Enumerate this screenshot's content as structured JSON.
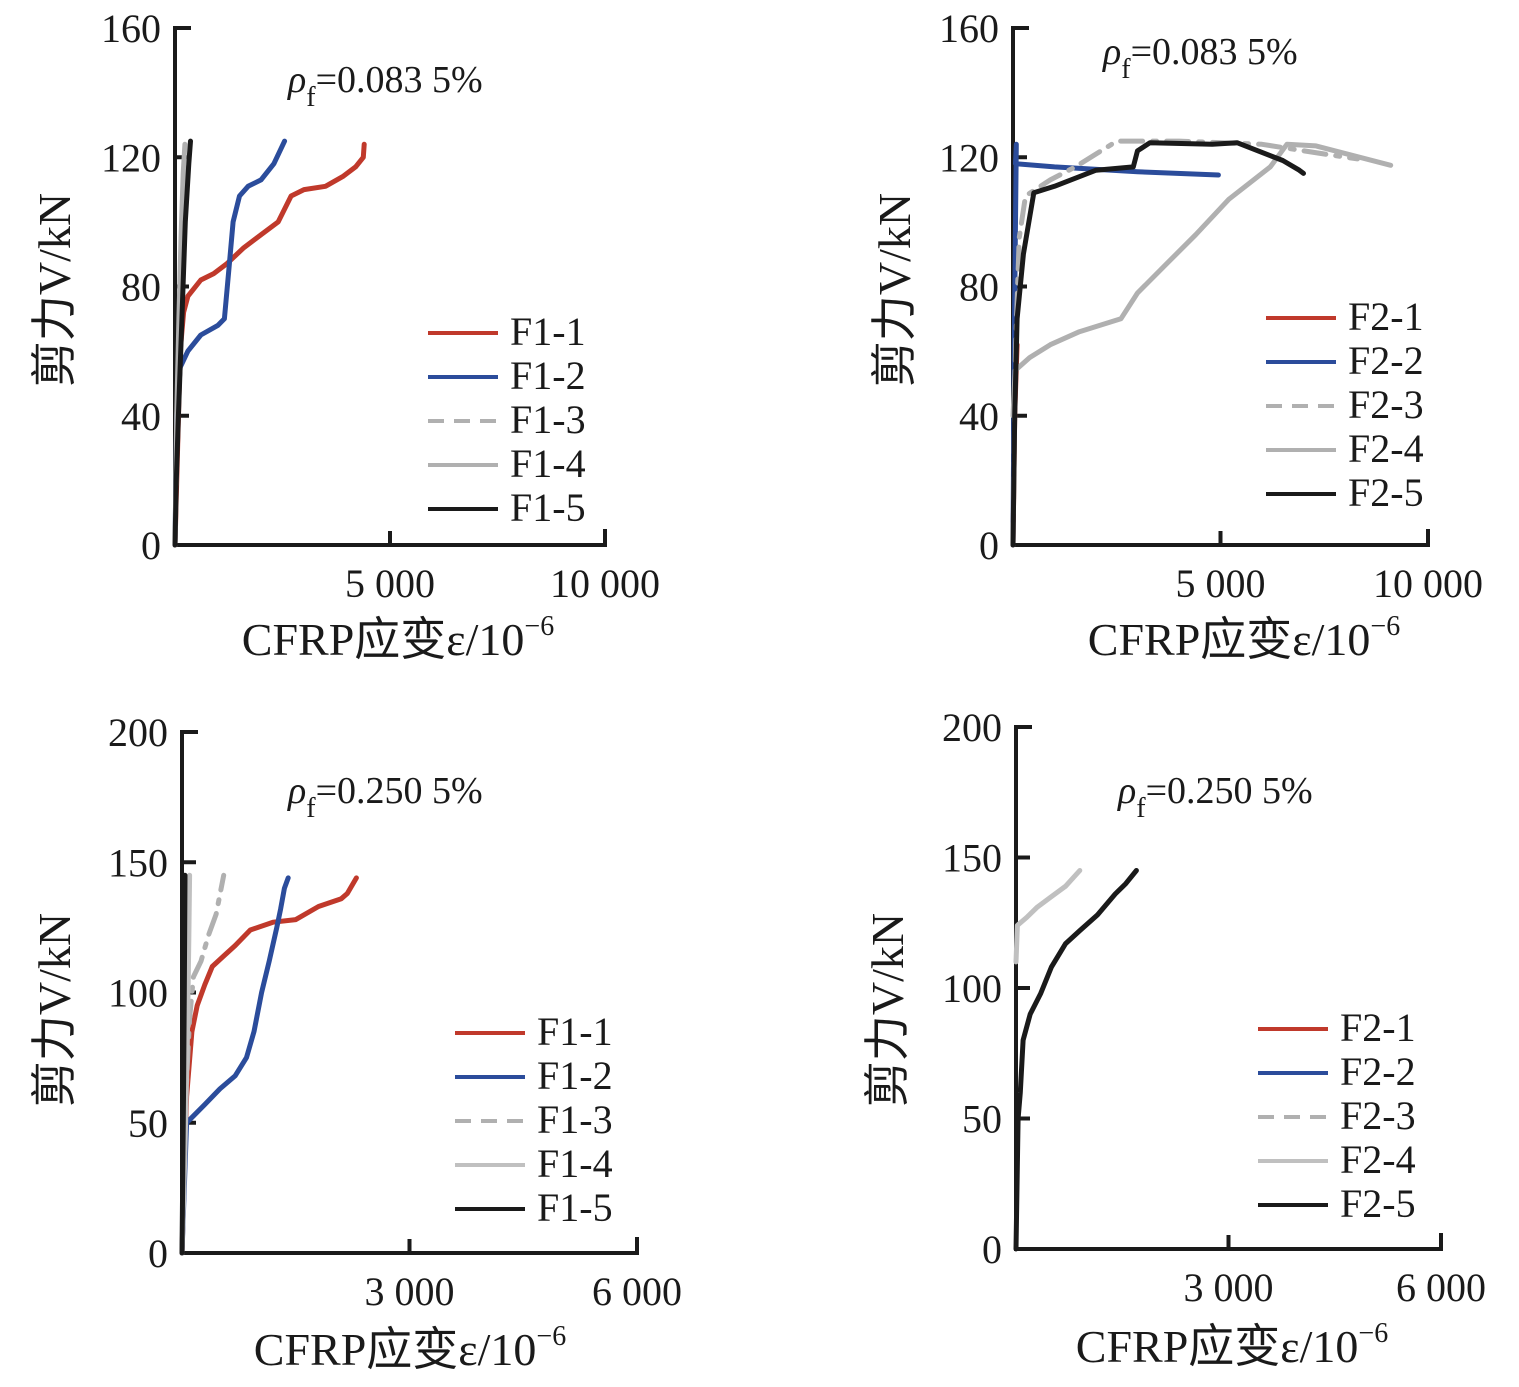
{
  "chart_data": [
    {
      "type": "line",
      "panel": "top-left",
      "annotation": {
        "symbol": "ρ",
        "subscript": "f",
        "value": "=0.083 5%"
      },
      "xlabel": "CFRP应变ε/10",
      "xlabel_exp": "−6",
      "ylabel": "剪力V/kN",
      "xlim": [
        0,
        10000
      ],
      "ylim": [
        0,
        160
      ],
      "xticks": [
        5000,
        10000
      ],
      "xtick_labels": [
        "5 000",
        "10 000"
      ],
      "yticks": [
        0,
        40,
        80,
        120,
        160
      ],
      "ytick_labels": [
        "0",
        "40",
        "80",
        "120",
        "160"
      ],
      "grid": false,
      "legend_position": "bottom-right",
      "series": [
        {
          "name": "F1-1",
          "color": "#c0392b",
          "dash": "solid",
          "points": [
            [
              0,
              0
            ],
            [
              60,
              30
            ],
            [
              120,
              60
            ],
            [
              200,
              72
            ],
            [
              300,
              77
            ],
            [
              600,
              82
            ],
            [
              900,
              84
            ],
            [
              1200,
              87
            ],
            [
              1600,
              92
            ],
            [
              2000,
              96
            ],
            [
              2400,
              100
            ],
            [
              2700,
              108
            ],
            [
              3000,
              110
            ],
            [
              3500,
              111
            ],
            [
              3900,
              114
            ],
            [
              4200,
              117
            ],
            [
              4380,
              120
            ],
            [
              4400,
              124
            ]
          ]
        },
        {
          "name": "F1-2",
          "color": "#2b4c9b",
          "dash": "solid",
          "points": [
            [
              0,
              0
            ],
            [
              40,
              40
            ],
            [
              120,
              55
            ],
            [
              300,
              60
            ],
            [
              600,
              65
            ],
            [
              1000,
              68
            ],
            [
              1150,
              70
            ],
            [
              1250,
              85
            ],
            [
              1350,
              100
            ],
            [
              1500,
              108
            ],
            [
              1700,
              111
            ],
            [
              2000,
              113
            ],
            [
              2300,
              118
            ],
            [
              2550,
              125
            ]
          ]
        },
        {
          "name": "F1-3",
          "color": "#b0b0b0",
          "dash": "dashed",
          "points": [
            [
              0,
              0
            ],
            [
              60,
              40
            ],
            [
              100,
              70
            ],
            [
              150,
              90
            ],
            [
              190,
              105
            ],
            [
              220,
              118
            ]
          ]
        },
        {
          "name": "F1-4",
          "color": "#b0b0b0",
          "dash": "solid",
          "points": [
            [
              0,
              0
            ],
            [
              40,
              40
            ],
            [
              90,
              70
            ],
            [
              140,
              95
            ],
            [
              190,
              115
            ],
            [
              230,
              124
            ]
          ]
        },
        {
          "name": "F1-5",
          "color": "#1a1a1a",
          "dash": "solid",
          "points": [
            [
              0,
              0
            ],
            [
              30,
              20
            ],
            [
              80,
              40
            ],
            [
              160,
              70
            ],
            [
              240,
              100
            ],
            [
              320,
              118
            ],
            [
              360,
              125
            ]
          ]
        }
      ]
    },
    {
      "type": "line",
      "panel": "top-right",
      "annotation": {
        "symbol": "ρ",
        "subscript": "f",
        "value": "=0.083 5%"
      },
      "xlabel": "CFRP应变ε/10",
      "xlabel_exp": "−6",
      "ylabel": "剪力V/kN",
      "xlim": [
        0,
        10000
      ],
      "ylim": [
        0,
        160
      ],
      "xticks": [
        5000,
        10000
      ],
      "xtick_labels": [
        "5 000",
        "10 000"
      ],
      "yticks": [
        0,
        40,
        80,
        120,
        160
      ],
      "ytick_labels": [
        "0",
        "40",
        "80",
        "120",
        "160"
      ],
      "grid": false,
      "legend_position": "bottom-right",
      "series": [
        {
          "name": "F2-1",
          "color": "#c0392b",
          "dash": "solid",
          "points": [
            [
              0,
              0
            ],
            [
              40,
              40
            ],
            [
              80,
              55
            ],
            [
              100,
              62
            ]
          ]
        },
        {
          "name": "F2-2",
          "color": "#2b4c9b",
          "dash": "solid",
          "points": [
            [
              0,
              0
            ],
            [
              30,
              60
            ],
            [
              60,
              100
            ],
            [
              80,
              124
            ],
            [
              60,
              118
            ],
            [
              1000,
              117
            ],
            [
              3000,
              115.5
            ],
            [
              4950,
              114.5
            ]
          ]
        },
        {
          "name": "F2-3",
          "color": "#b0b0b0",
          "dash": "dashdot",
          "points": [
            [
              0,
              0
            ],
            [
              60,
              60
            ],
            [
              150,
              95
            ],
            [
              300,
              108
            ],
            [
              900,
              113
            ],
            [
              1500,
              117
            ],
            [
              2000,
              121
            ],
            [
              2500,
              125
            ],
            [
              4000,
              125
            ],
            [
              6000,
              124
            ],
            [
              7500,
              121
            ],
            [
              8300,
              119.5
            ]
          ]
        },
        {
          "name": "F2-4",
          "color": "#b0b0b0",
          "dash": "solid",
          "points": [
            [
              0,
              40
            ],
            [
              50,
              54
            ],
            [
              400,
              58
            ],
            [
              900,
              62
            ],
            [
              1600,
              66
            ],
            [
              2600,
              70
            ],
            [
              3000,
              78
            ],
            [
              3700,
              87
            ],
            [
              4400,
              96
            ],
            [
              5200,
              107
            ],
            [
              6200,
              117
            ],
            [
              6600,
              124
            ],
            [
              7300,
              123.5
            ],
            [
              9100,
              117.5
            ]
          ]
        },
        {
          "name": "F2-5",
          "color": "#1a1a1a",
          "dash": "solid",
          "points": [
            [
              0,
              0
            ],
            [
              40,
              40
            ],
            [
              100,
              70
            ],
            [
              250,
              90
            ],
            [
              500,
              109
            ],
            [
              1000,
              111
            ],
            [
              2000,
              116
            ],
            [
              2900,
              117
            ],
            [
              3000,
              122
            ],
            [
              3300,
              124.5
            ],
            [
              4800,
              124
            ],
            [
              5400,
              124.5
            ],
            [
              6500,
              119
            ],
            [
              6900,
              116
            ],
            [
              7000,
              115
            ]
          ]
        }
      ]
    },
    {
      "type": "line",
      "panel": "bottom-left",
      "annotation": {
        "symbol": "ρ",
        "subscript": "f",
        "value": "=0.250 5%"
      },
      "xlabel": "CFRP应变ε/10",
      "xlabel_exp": "−6",
      "ylabel": "剪力V/kN",
      "xlim": [
        0,
        6000
      ],
      "ylim": [
        0,
        200
      ],
      "xticks": [
        3000,
        6000
      ],
      "xtick_labels": [
        "3 000",
        "6 000"
      ],
      "yticks": [
        0,
        50,
        100,
        150,
        200
      ],
      "ytick_labels": [
        "0",
        "50",
        "100",
        "150",
        "200"
      ],
      "grid": false,
      "legend_position": "bottom-right",
      "series": [
        {
          "name": "F1-1",
          "color": "#c0392b",
          "dash": "solid",
          "points": [
            [
              0,
              0
            ],
            [
              60,
              60
            ],
            [
              130,
              85
            ],
            [
              200,
              95
            ],
            [
              300,
              103
            ],
            [
              400,
              110
            ],
            [
              550,
              114
            ],
            [
              700,
              118
            ],
            [
              900,
              124
            ],
            [
              1200,
              127
            ],
            [
              1500,
              128
            ],
            [
              1800,
              133
            ],
            [
              2100,
              136
            ],
            [
              2180,
              138
            ],
            [
              2300,
              144
            ]
          ]
        },
        {
          "name": "F1-2",
          "color": "#2b4c9b",
          "dash": "solid",
          "points": [
            [
              0,
              0
            ],
            [
              60,
              50
            ],
            [
              300,
              57
            ],
            [
              500,
              63
            ],
            [
              700,
              68
            ],
            [
              850,
              75
            ],
            [
              950,
              85
            ],
            [
              1050,
              100
            ],
            [
              1150,
              112
            ],
            [
              1250,
              125
            ],
            [
              1300,
              132
            ],
            [
              1350,
              140
            ],
            [
              1400,
              144
            ]
          ]
        },
        {
          "name": "F1-3",
          "color": "#b0b0b0",
          "dash": "dashdot",
          "points": [
            [
              0,
              0
            ],
            [
              50,
              60
            ],
            [
              100,
              90
            ],
            [
              150,
              106
            ],
            [
              250,
              112
            ],
            [
              350,
              122
            ],
            [
              450,
              130
            ],
            [
              550,
              145
            ]
          ]
        },
        {
          "name": "F1-4",
          "color": "#c0c0c0",
          "dash": "solid",
          "points": [
            [
              0,
              0
            ],
            [
              40,
              40
            ],
            [
              70,
              80
            ],
            [
              90,
              120
            ],
            [
              100,
              145
            ]
          ]
        },
        {
          "name": "F1-5",
          "color": "#1a1a1a",
          "dash": "solid",
          "points": [
            [
              0,
              0
            ],
            [
              20,
              60
            ],
            [
              30,
              100
            ],
            [
              40,
              145
            ]
          ]
        }
      ]
    },
    {
      "type": "line",
      "panel": "bottom-right",
      "annotation": {
        "symbol": "ρ",
        "subscript": "f",
        "value": "=0.250 5%"
      },
      "xlabel": "CFRP应变ε/10",
      "xlabel_exp": "−6",
      "ylabel": "剪力V/kN",
      "xlim": [
        0,
        6000
      ],
      "ylim": [
        0,
        200
      ],
      "xticks": [
        3000,
        6000
      ],
      "xtick_labels": [
        "3 000",
        "6 000"
      ],
      "yticks": [
        0,
        50,
        100,
        150,
        200
      ],
      "ytick_labels": [
        "0",
        "50",
        "100",
        "150",
        "200"
      ],
      "grid": false,
      "legend_position": "bottom-right",
      "series": [
        {
          "name": "F2-1",
          "color": "#c0392b",
          "dash": "solid",
          "points": []
        },
        {
          "name": "F2-2",
          "color": "#2b4c9b",
          "dash": "solid",
          "points": []
        },
        {
          "name": "F2-3",
          "color": "#b0b0b0",
          "dash": "dashed",
          "points": []
        },
        {
          "name": "F2-4",
          "color": "#c0c0c0",
          "dash": "solid",
          "points": [
            [
              0,
              110
            ],
            [
              20,
              124
            ],
            [
              150,
              127
            ],
            [
              300,
              131
            ],
            [
              500,
              135
            ],
            [
              700,
              139
            ],
            [
              900,
              145
            ]
          ]
        },
        {
          "name": "F2-5",
          "color": "#1a1a1a",
          "dash": "solid",
          "points": [
            [
              0,
              0
            ],
            [
              30,
              50
            ],
            [
              60,
              60
            ],
            [
              100,
              80
            ],
            [
              200,
              90
            ],
            [
              350,
              98
            ],
            [
              500,
              108
            ],
            [
              700,
              117
            ],
            [
              900,
              122
            ],
            [
              1150,
              128
            ],
            [
              1400,
              136
            ],
            [
              1550,
              140
            ],
            [
              1700,
              145
            ]
          ]
        }
      ]
    }
  ]
}
